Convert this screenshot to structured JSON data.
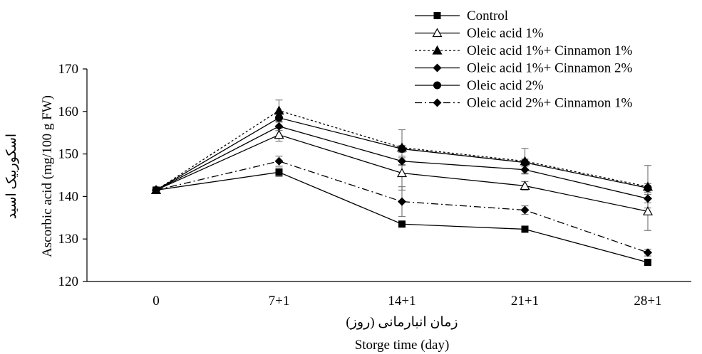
{
  "chart_data": {
    "type": "line",
    "title": "",
    "xlabel_fa": "زمان انبارمانی (روز)",
    "xlabel": "Storge time (day)",
    "ylabel_fa": "اسکوربیک اسید",
    "ylabel": "Ascorbic acid (mg/100 g  FW)",
    "categories": [
      "0",
      "7+1",
      "14+1",
      "21+1",
      "28+1"
    ],
    "ylim": [
      120,
      170
    ],
    "yticks": [
      120,
      130,
      140,
      150,
      160,
      170
    ],
    "grid": false,
    "legend_position": "top-right",
    "series": [
      {
        "name": "Control",
        "values": [
          141.5,
          145.7,
          133.5,
          132.3,
          124.5
        ],
        "errors": [
          0,
          1,
          0,
          0,
          0
        ],
        "marker": "square",
        "dash": "solid"
      },
      {
        "name": "Oleic acid 1%",
        "values": [
          141.5,
          154.5,
          145.5,
          142.5,
          136.5
        ],
        "errors": [
          0,
          1.5,
          4,
          1,
          4.5
        ],
        "marker": "triangle-open",
        "dash": "solid"
      },
      {
        "name": "Oleic acid 1%+ Cinnamon 1%",
        "values": [
          141.5,
          160.2,
          151.5,
          148.3,
          142.3
        ],
        "errors": [
          0,
          2.5,
          4.2,
          3,
          5
        ],
        "marker": "triangle",
        "dash": "dotted"
      },
      {
        "name": "Oleic acid 1%+ Cinnamon 2%",
        "values": [
          141.5,
          156.5,
          148.3,
          146.3,
          139.5
        ],
        "errors": [
          0,
          1,
          0.8,
          0.8,
          1
        ],
        "marker": "diamond",
        "dash": "solid"
      },
      {
        "name": "Oleic acid 2%",
        "values": [
          141.5,
          158.5,
          151.2,
          148,
          142
        ],
        "errors": [
          0,
          1,
          0.8,
          0.8,
          1
        ],
        "marker": "circle",
        "dash": "solid"
      },
      {
        "name": "Oleic acid 2%+ Cinnamon 1%",
        "values": [
          141.5,
          148.3,
          138.8,
          136.8,
          126.8
        ],
        "errors": [
          0,
          1.2,
          3.5,
          1,
          0.8
        ],
        "marker": "diamond",
        "dash": "dashdot"
      }
    ]
  }
}
